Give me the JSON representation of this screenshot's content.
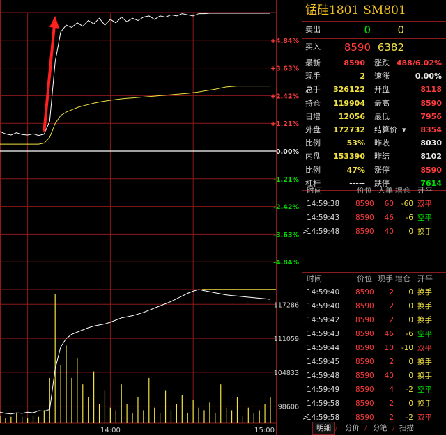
{
  "contract": {
    "name": "锰硅1801",
    "code": "SM801"
  },
  "orderbook": {
    "sell": {
      "label": "卖出",
      "price": "0",
      "volume": "0"
    },
    "buy": {
      "label": "买入",
      "price": "8590",
      "volume": "6382"
    }
  },
  "quote_rows": [
    {
      "l1": "最新",
      "v1": "8590",
      "c1": "red",
      "l2": "涨跌",
      "v2": "488/6.02%",
      "c2": "red"
    },
    {
      "l1": "现手",
      "v1": "2",
      "c1": "yel",
      "l2": "速涨",
      "v2": "0.00%",
      "c2": "wht"
    },
    {
      "l1": "总手",
      "v1": "326122",
      "c1": "yel",
      "l2": "开盘",
      "v2": "8118",
      "c2": "red"
    },
    {
      "l1": "持仓",
      "v1": "119904",
      "c1": "yel",
      "l2": "最高",
      "v2": "8590",
      "c2": "red"
    },
    {
      "l1": "日增",
      "v1": "12056",
      "c1": "yel",
      "l2": "最低",
      "v2": "7956",
      "c2": "red"
    },
    {
      "l1": "外盘",
      "v1": "172732",
      "c1": "yel",
      "l2": "结算价",
      "v2": "8354",
      "c2": "red"
    },
    {
      "l1": "比例",
      "v1": "53%",
      "c1": "yel",
      "l2": "昨收",
      "v2": "8030",
      "c2": "wht"
    },
    {
      "l1": "内盘",
      "v1": "153390",
      "c1": "yel",
      "l2": "昨结",
      "v2": "8102",
      "c2": "wht"
    },
    {
      "l1": "比例",
      "v1": "47%",
      "c1": "yel",
      "l2": "涨停",
      "v2": "8590",
      "c2": "red"
    },
    {
      "l1": "杠杆",
      "v1": "-----",
      "c1": "wht",
      "l2": "跌停",
      "v2": "7614",
      "c2": "grn"
    }
  ],
  "big_orders": {
    "headers": [
      "时间",
      "价位",
      "大单",
      "增仓",
      "开平"
    ],
    "rows": [
      {
        "time": "14:59:38",
        "price": "8590",
        "qty": "60",
        "chg": "-60",
        "type": "双平"
      },
      {
        "time": "14:59:43",
        "price": "8590",
        "qty": "46",
        "chg": "-6",
        "type": "空平"
      },
      {
        "time": "14:59:48",
        "price": "8590",
        "qty": "40",
        "chg": "0",
        "type": "换手"
      }
    ]
  },
  "ticks": {
    "headers": [
      "时间",
      "价位",
      "现手",
      "增仓",
      "开平"
    ],
    "rows": [
      {
        "time": "14:59:40",
        "price": "8590",
        "qty": "2",
        "chg": "0",
        "type": "换手"
      },
      {
        "time": "14:59:40",
        "price": "8590",
        "qty": "2",
        "chg": "0",
        "type": "换手"
      },
      {
        "time": "14:59:42",
        "price": "8590",
        "qty": "2",
        "chg": "0",
        "type": "换手"
      },
      {
        "time": "14:59:43",
        "price": "8590",
        "qty": "46",
        "chg": "-6",
        "type": "空平"
      },
      {
        "time": "14:59:44",
        "price": "8590",
        "qty": "10",
        "chg": "-10",
        "type": "双平"
      },
      {
        "time": "14:59:45",
        "price": "8590",
        "qty": "2",
        "chg": "0",
        "type": "换手"
      },
      {
        "time": "14:59:48",
        "price": "8590",
        "qty": "40",
        "chg": "0",
        "type": "换手"
      },
      {
        "time": "14:59:49",
        "price": "8590",
        "qty": "4",
        "chg": "-2",
        "type": "空平"
      },
      {
        "time": "14:59:58",
        "price": "8590",
        "qty": "2",
        "chg": "0",
        "type": "换手"
      },
      {
        "time": "14:59:58",
        "price": "8590",
        "qty": "2",
        "chg": "-2",
        "type": "双平"
      }
    ]
  },
  "tabs": [
    {
      "label": "明细",
      "active": true
    },
    {
      "label": "分价",
      "active": false
    },
    {
      "label": "分笔",
      "active": false
    },
    {
      "label": "扫描",
      "active": false
    }
  ],
  "colors": {
    "up": "#ff3c3c",
    "down": "#00e000",
    "neutral": "#e8e8e8",
    "volume": "#f0e040",
    "grid": "#8b1a1a",
    "price_line": "#ffffff",
    "avg_line": "#f0e040",
    "arrow": "#ff2020"
  },
  "chart_data": {
    "type": "line",
    "pct_ticks": [
      "+4.84%",
      "+3.63%",
      "+2.42%",
      "+1.21%",
      "0.00%",
      "-1.21%",
      "-2.42%",
      "-3.63%",
      "-4.84%"
    ],
    "pct_values": [
      4.84,
      3.63,
      2.42,
      1.21,
      0,
      -1.21,
      -2.42,
      -3.63,
      -4.84
    ],
    "ylim_pct": [
      -6.05,
      6.05
    ],
    "vol_ticks": [
      "117286",
      "111059",
      "104833",
      "98606"
    ],
    "vol_values": [
      117286,
      111059,
      104833,
      98606
    ],
    "vol_ylim": [
      95500,
      120000
    ],
    "x_ticks": [
      "14:00",
      "15:00"
    ],
    "x_tick_pos": [
      0.4,
      1.0
    ],
    "price_pct": [
      0.85,
      0.75,
      0.7,
      0.8,
      0.72,
      0.7,
      0.75,
      0.68,
      0.74,
      1.3,
      3.9,
      5.2,
      5.5,
      5.4,
      5.6,
      5.45,
      5.7,
      5.55,
      5.8,
      5.5,
      5.75,
      5.6,
      5.85,
      5.65,
      5.8,
      5.7,
      5.85,
      5.9,
      5.75,
      5.9,
      5.85,
      5.95,
      5.9,
      6.0,
      5.95,
      5.9,
      6.0,
      6.0,
      6.02,
      6.02,
      6.02,
      6.02,
      6.02,
      6.02,
      6.02,
      6.02,
      6.02,
      6.02,
      6.02,
      6.02
    ],
    "avg_pct": [
      0.3,
      0.3,
      0.3,
      0.3,
      0.3,
      0.3,
      0.3,
      0.3,
      0.35,
      0.6,
      1.2,
      1.55,
      1.7,
      1.8,
      1.9,
      1.97,
      2.03,
      2.09,
      2.14,
      2.18,
      2.22,
      2.25,
      2.28,
      2.3,
      2.32,
      2.34,
      2.36,
      2.38,
      2.4,
      2.42,
      2.44,
      2.46,
      2.48,
      2.5,
      2.52,
      2.55,
      2.58,
      2.62,
      2.66,
      2.7,
      2.75,
      2.8,
      2.82,
      2.84,
      2.84,
      2.84,
      2.84,
      2.84,
      2.84,
      2.84
    ],
    "oi": [
      97500,
      97300,
      97200,
      97400,
      97300,
      97500,
      97400,
      97800,
      97700,
      98000,
      105500,
      109500,
      111000,
      111800,
      112200,
      112600,
      113000,
      113300,
      113500,
      113700,
      114000,
      114400,
      114800,
      115000,
      115200,
      115500,
      115800,
      116200,
      116600,
      117000,
      117400,
      117800,
      118300,
      118800,
      119300,
      119700,
      120000,
      119800,
      119600,
      119400,
      119200,
      119000,
      118900,
      118800,
      118700,
      118600,
      118500,
      118400,
      118300,
      118200
    ],
    "volume": [
      0.06,
      0.04,
      0.05,
      0.08,
      0.05,
      0.04,
      0.06,
      0.05,
      0.1,
      0.35,
      1.0,
      0.45,
      0.6,
      0.35,
      0.5,
      0.3,
      0.2,
      0.4,
      0.15,
      0.25,
      0.12,
      0.1,
      0.3,
      0.15,
      0.08,
      0.2,
      0.1,
      0.35,
      0.12,
      0.08,
      0.25,
      0.1,
      0.15,
      0.22,
      0.08,
      0.18,
      0.12,
      0.1,
      0.16,
      0.08,
      0.3,
      0.12,
      0.1,
      0.2,
      0.06,
      0.12,
      0.08,
      0.1,
      0.15,
      0.2
    ]
  }
}
